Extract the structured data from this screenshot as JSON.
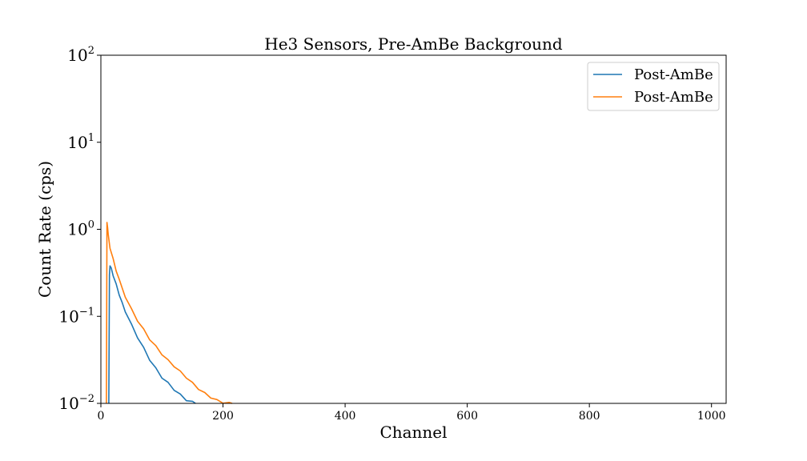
{
  "chart_data": {
    "type": "line",
    "title": "He3 Sensors, Pre-AmBe Background",
    "xlabel": "Channel",
    "ylabel": "Count Rate (cps)",
    "xlim": [
      0,
      1024
    ],
    "ylim": [
      0.01,
      100
    ],
    "yscale": "log",
    "grid": false,
    "legend_position": "top-right",
    "x_ticks": [
      0,
      200,
      400,
      600,
      800,
      1000
    ],
    "x_tick_labels": [
      "0",
      "200",
      "400",
      "600",
      "800",
      "1000"
    ],
    "y_ticks": [
      0.01,
      0.1,
      1,
      10,
      100
    ],
    "y_tick_labels": [
      {
        "base": "10",
        "exp": "−2"
      },
      {
        "base": "10",
        "exp": "−1"
      },
      {
        "base": "10",
        "exp": "0"
      },
      {
        "base": "10",
        "exp": "1"
      },
      {
        "base": "10",
        "exp": "2"
      }
    ],
    "series": [
      {
        "name": "Post-AmBe",
        "color": "#1f77b4",
        "x": [
          13,
          14,
          15,
          17,
          20,
          25,
          30,
          35,
          40,
          50,
          60,
          70,
          80,
          90,
          100,
          110,
          120,
          130,
          140,
          150,
          155
        ],
        "y": [
          0.01,
          0.3,
          0.38,
          0.35,
          0.3,
          0.23,
          0.18,
          0.14,
          0.115,
          0.08,
          0.058,
          0.043,
          0.032,
          0.025,
          0.02,
          0.017,
          0.0145,
          0.0125,
          0.011,
          0.0103,
          0.01
        ]
      },
      {
        "name": "Post-AmBe",
        "color": "#ff7f0e",
        "x": [
          9,
          10,
          11,
          12,
          15,
          20,
          25,
          30,
          40,
          50,
          60,
          70,
          80,
          90,
          100,
          110,
          120,
          130,
          140,
          150,
          160,
          170,
          180,
          190,
          200,
          210,
          215
        ],
        "y": [
          0.01,
          1.2,
          1.05,
          0.85,
          0.62,
          0.45,
          0.34,
          0.26,
          0.17,
          0.12,
          0.09,
          0.07,
          0.055,
          0.045,
          0.037,
          0.031,
          0.027,
          0.023,
          0.02,
          0.017,
          0.0148,
          0.013,
          0.0118,
          0.0108,
          0.0103,
          0.01,
          0.01
        ]
      }
    ]
  }
}
